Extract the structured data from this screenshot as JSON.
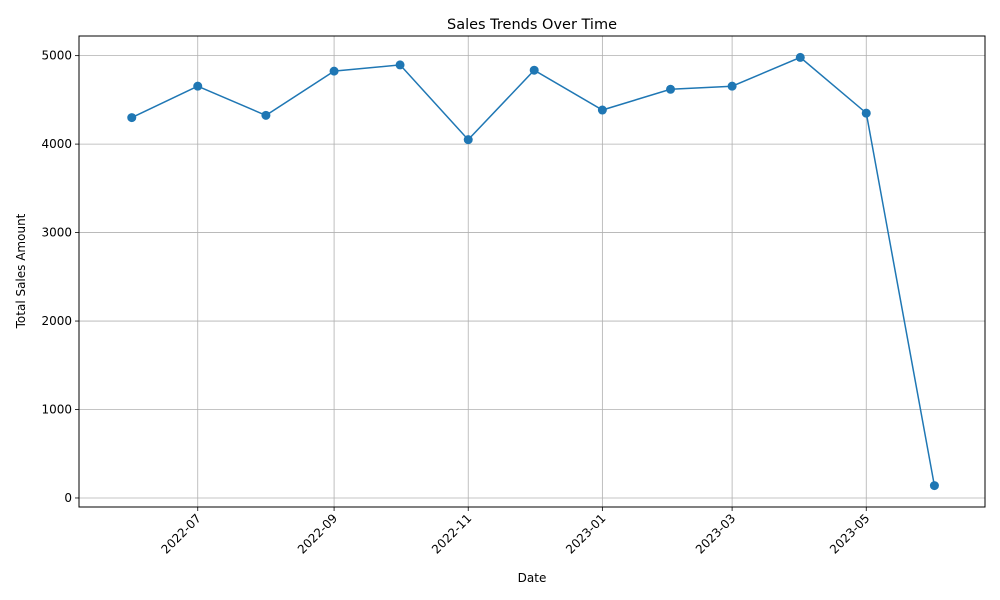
{
  "chart_data": {
    "type": "line",
    "title": "Sales Trends Over Time",
    "xlabel": "Date",
    "ylabel": "Total Sales Amount",
    "x": [
      "2022-06-01",
      "2022-07-01",
      "2022-08-01",
      "2022-09-01",
      "2022-10-01",
      "2022-11-01",
      "2022-12-01",
      "2023-01-01",
      "2023-02-01",
      "2023-03-01",
      "2023-04-01",
      "2023-05-01",
      "2023-06-01"
    ],
    "series": [
      {
        "values": [
          4300,
          4655,
          4325,
          4825,
          4895,
          4050,
          4835,
          4385,
          4620,
          4655,
          4980,
          4350,
          140
        ],
        "color": "#1f77b4",
        "marker": "circle"
      }
    ],
    "xticks": [
      "2022-07",
      "2022-09",
      "2022-11",
      "2023-01",
      "2023-03",
      "2023-05"
    ],
    "xtick_dates": [
      "2022-07-01",
      "2022-09-01",
      "2022-11-01",
      "2023-01-01",
      "2023-03-01",
      "2023-05-01"
    ],
    "yticks": [
      0,
      1000,
      2000,
      3000,
      4000,
      5000
    ],
    "xlim": [
      "2022-05-08",
      "2023-06-24"
    ],
    "ylim": [
      -102,
      5222
    ],
    "grid": true,
    "xtick_rotation_deg": 45
  }
}
